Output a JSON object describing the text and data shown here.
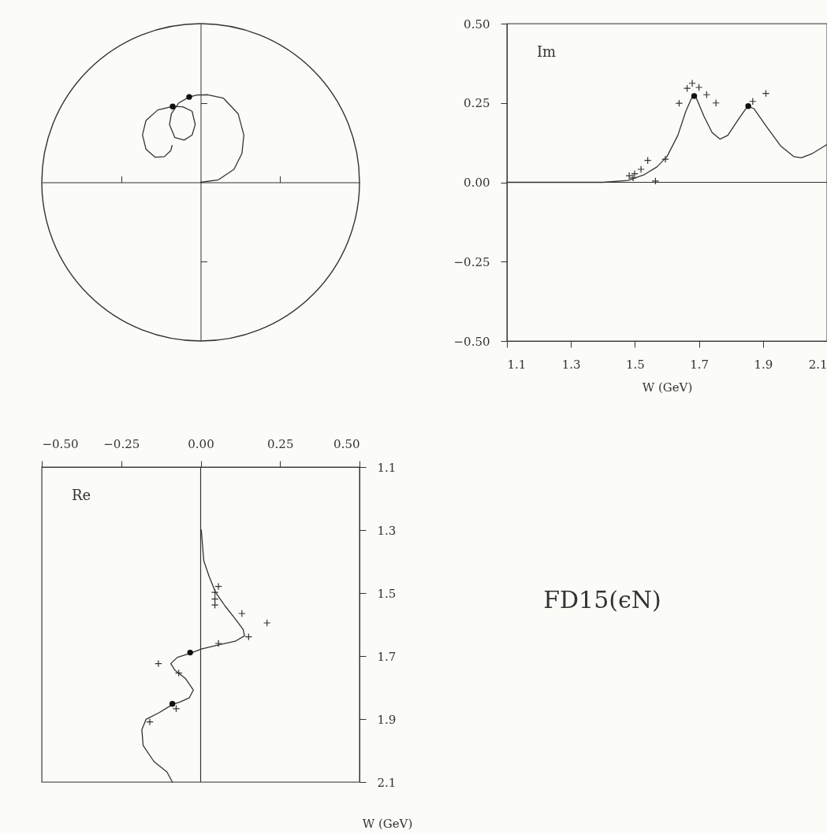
{
  "chart_data": [
    {
      "type": "line",
      "xlim": [
        -0.5,
        0.5
      ],
      "ylim": [
        -0.5,
        0.5
      ],
      "xticks": [
        -0.25,
        0.25
      ],
      "yticks": [
        -0.25,
        0.25
      ],
      "tick_labels": false,
      "series": [
        {
          "type": "line",
          "color": "#333333",
          "marker": "none",
          "x": [
            0,
            0.056,
            0.105,
            0.13,
            0.136,
            0.118,
            0.072,
            0.022,
            -0.011,
            -0.036,
            -0.069,
            -0.092,
            -0.098,
            -0.081,
            -0.052,
            -0.027,
            -0.017,
            -0.027,
            -0.056,
            -0.088,
            -0.135,
            -0.172,
            -0.183,
            -0.172,
            -0.143,
            -0.114,
            -0.094,
            -0.09
          ],
          "values": [
            0,
            0.008,
            0.041,
            0.091,
            0.149,
            0.216,
            0.265,
            0.276,
            0.275,
            0.269,
            0.25,
            0.216,
            0.182,
            0.141,
            0.133,
            0.149,
            0.182,
            0.224,
            0.238,
            0.239,
            0.228,
            0.195,
            0.149,
            0.104,
            0.079,
            0.081,
            0.1,
            0.116
          ]
        },
        {
          "type": "scatter",
          "color": "#111111",
          "marker": "circle",
          "x": [
            -0.036,
            -0.088
          ],
          "values": [
            0.269,
            0.239
          ]
        }
      ]
    },
    {
      "type": "line",
      "annotations": [
        "Im"
      ],
      "xlabel": "W (GeV)",
      "xlim": [
        1.1,
        2.1
      ],
      "xticks": [
        1.1,
        1.3,
        1.5,
        1.7,
        1.9,
        2.1
      ],
      "ylim": [
        -0.5,
        0.5
      ],
      "yticks": [
        {
          "value": -0.5,
          "label": "−0.50"
        },
        {
          "value": -0.25,
          "label": "−0.25"
        },
        {
          "value": 0,
          "label": "0.00"
        },
        {
          "value": 0.25,
          "label": "0.25"
        },
        {
          "value": 0.5,
          "label": "0.50"
        }
      ],
      "ref_lines": [
        {
          "axis": "y",
          "value": 0
        }
      ],
      "series": [
        {
          "type": "line",
          "color": "#333333",
          "marker": "none",
          "x": [
            1.1,
            1.3,
            1.4,
            1.478,
            1.527,
            1.568,
            1.6,
            1.634,
            1.659,
            1.679,
            1.692,
            1.716,
            1.741,
            1.766,
            1.79,
            1.823,
            1.852,
            1.872,
            1.913,
            1.955,
            1.996,
            2.02,
            2.053,
            2.1
          ],
          "values": [
            0,
            0,
            0,
            0.006,
            0.023,
            0.048,
            0.081,
            0.148,
            0.224,
            0.27,
            0.265,
            0.207,
            0.157,
            0.136,
            0.148,
            0.198,
            0.24,
            0.232,
            0.173,
            0.115,
            0.081,
            0.077,
            0.09,
            0.119
          ]
        },
        {
          "type": "scatter",
          "color": "#333333",
          "marker": "cross",
          "x": [
            1.482,
            1.494,
            1.499,
            1.519,
            1.54,
            1.564,
            1.595,
            1.638,
            1.663,
            1.679,
            1.7,
            1.724,
            1.753,
            1.868,
            1.909
          ],
          "values": [
            0.021,
            0.014,
            0.027,
            0.041,
            0.069,
            0.004,
            0.073,
            0.249,
            0.296,
            0.312,
            0.299,
            0.276,
            0.25,
            0.255,
            0.28
          ]
        },
        {
          "type": "scatter",
          "color": "#111111",
          "marker": "circle",
          "x": [
            1.685,
            1.854
          ],
          "values": [
            0.272,
            0.24
          ]
        }
      ]
    },
    {
      "type": "line",
      "annotations": [
        "Re"
      ],
      "ylabel": "W (GeV)",
      "xlim": [
        -0.5,
        0.5
      ],
      "xticks": [
        {
          "value": -0.5,
          "label": "−0.50"
        },
        {
          "value": -0.25,
          "label": "−0.25"
        },
        {
          "value": 0,
          "label": "0.00"
        },
        {
          "value": 0.25,
          "label": "0.25"
        },
        {
          "value": 0.5,
          "label": "0.50"
        }
      ],
      "ylim": [
        2.1,
        1.1
      ],
      "yticks": [
        1.1,
        1.3,
        1.5,
        1.7,
        1.9,
        2.1
      ],
      "ref_lines": [
        {
          "axis": "x",
          "value": 0
        }
      ],
      "series": [
        {
          "type": "line",
          "color": "#333333",
          "marker": "none",
          "x": [
            0.002,
            0.01,
            0.027,
            0.047,
            0.076,
            0.109,
            0.134,
            0.138,
            0.109,
            0.051,
            0.002,
            -0.031,
            -0.073,
            -0.094,
            -0.081,
            -0.048,
            -0.023,
            -0.036,
            -0.065,
            -0.089,
            -0.131,
            -0.172,
            -0.185,
            -0.181,
            -0.147,
            -0.106,
            -0.089
          ],
          "values": [
            1.3,
            1.398,
            1.448,
            1.498,
            1.54,
            1.582,
            1.616,
            1.636,
            1.653,
            1.666,
            1.678,
            1.691,
            1.704,
            1.724,
            1.745,
            1.771,
            1.808,
            1.833,
            1.846,
            1.854,
            1.88,
            1.901,
            1.934,
            1.984,
            2.035,
            2.068,
            2.1
          ]
        },
        {
          "type": "scatter",
          "color": "#333333",
          "marker": "cross",
          "x": [
            0.056,
            0.045,
            0.045,
            0.045,
            0.13,
            0.209,
            0.151,
            0.056,
            -0.133,
            -0.069,
            -0.077,
            -0.16
          ],
          "values": [
            1.479,
            1.498,
            1.519,
            1.538,
            1.565,
            1.595,
            1.639,
            1.66,
            1.724,
            1.754,
            1.867,
            1.909
          ]
        },
        {
          "type": "scatter",
          "color": "#111111",
          "marker": "circle",
          "x": [
            -0.033,
            -0.089
          ],
          "values": [
            1.689,
            1.852
          ]
        }
      ]
    },
    {
      "type": "other",
      "title": "FD15(ϵN)"
    }
  ]
}
